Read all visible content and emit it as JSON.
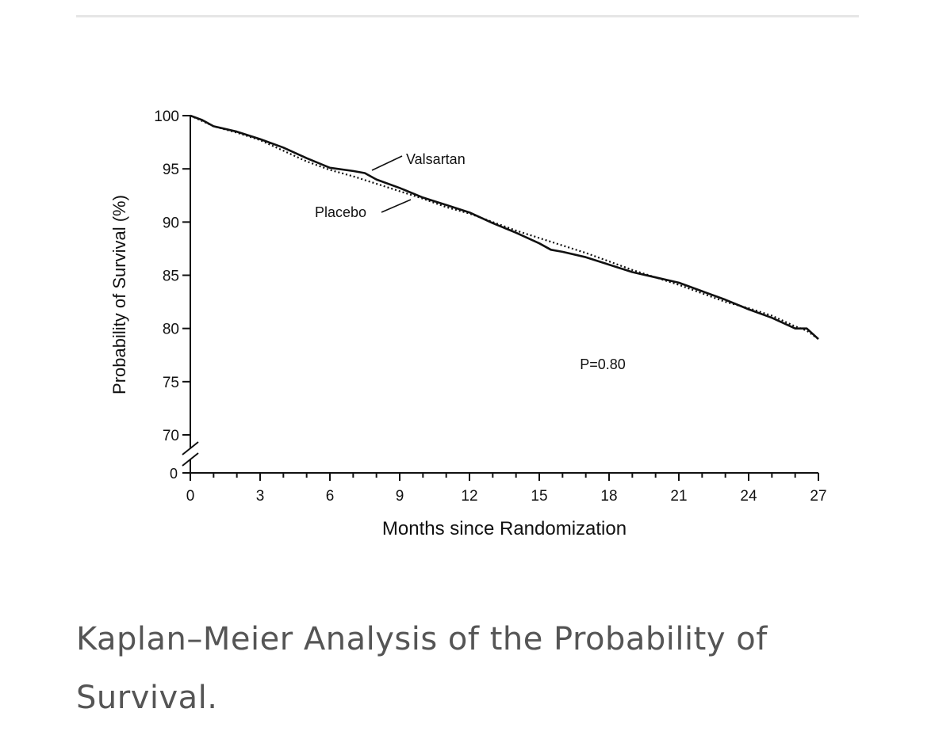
{
  "caption": "Kaplan–Meier Analysis of the Probability of Survival.",
  "chart_data": {
    "type": "line",
    "title": "",
    "xlabel": "Months since Randomization",
    "ylabel": "Probability of Survival (%)",
    "xlim": [
      0,
      27
    ],
    "ylim": [
      70,
      100
    ],
    "y_axis_break": true,
    "y_break_bottom_label": "0",
    "xticks": [
      0,
      3,
      6,
      9,
      12,
      15,
      18,
      21,
      24,
      27
    ],
    "xtick_labels": [
      "0",
      "3",
      "6",
      "9",
      "12",
      "15",
      "18",
      "21",
      "24",
      "27"
    ],
    "yticks": [
      70,
      75,
      80,
      85,
      90,
      95,
      100
    ],
    "ytick_labels": [
      "70",
      "75",
      "80",
      "85",
      "90",
      "95",
      "100"
    ],
    "grid": false,
    "annotation": "P=0.80",
    "series": [
      {
        "name": "Valsartan",
        "style": "solid",
        "color": "#111111",
        "x": [
          0,
          0.5,
          1,
          2,
          3,
          4,
          5,
          6,
          7,
          7.5,
          8,
          9,
          10,
          11,
          12,
          13,
          14,
          15,
          15.5,
          16,
          17,
          18,
          19,
          20,
          21,
          22,
          23,
          24,
          25,
          26,
          26.5,
          27
        ],
        "y": [
          100,
          99.6,
          99,
          98.5,
          97.8,
          97,
          96,
          95.1,
          94.8,
          94.6,
          94,
          93.2,
          92.3,
          91.6,
          90.9,
          89.9,
          89.0,
          88.0,
          87.4,
          87.2,
          86.7,
          86.0,
          85.3,
          84.8,
          84.3,
          83.5,
          82.7,
          81.8,
          81.0,
          80.0,
          80.0,
          79.0
        ]
      },
      {
        "name": "Placebo",
        "style": "dotted",
        "color": "#111111",
        "x": [
          0,
          0.5,
          1,
          2,
          3,
          4,
          5,
          6,
          7,
          8,
          9,
          10,
          11,
          12,
          13,
          14,
          15,
          16,
          17,
          18,
          19,
          20,
          21,
          22,
          23,
          24,
          25,
          26,
          26.5,
          27
        ],
        "y": [
          100,
          99.5,
          99,
          98.4,
          97.7,
          96.7,
          95.7,
          94.9,
          94.3,
          93.6,
          92.9,
          92.2,
          91.4,
          90.8,
          90.0,
          89.2,
          88.5,
          87.8,
          87.1,
          86.3,
          85.5,
          84.8,
          84.1,
          83.3,
          82.5,
          81.9,
          81.2,
          80.2,
          79.8,
          79.0
        ]
      }
    ]
  }
}
